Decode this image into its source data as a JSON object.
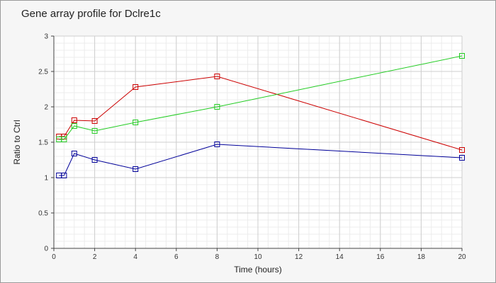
{
  "chart_data": {
    "type": "line",
    "title": "Gene array profile for Dclre1c",
    "xlabel": "Time (hours)",
    "ylabel": "Ratio to Ctrl",
    "xlim": [
      0,
      20
    ],
    "ylim": [
      0,
      3
    ],
    "x_ticks": [
      0,
      2,
      4,
      6,
      8,
      10,
      12,
      14,
      16,
      18,
      20
    ],
    "y_ticks": [
      0,
      0.5,
      1,
      1.5,
      2,
      2.5,
      3
    ],
    "y_tick_labels": [
      "0",
      "0.5",
      "1",
      "1.5",
      "2",
      "2.5",
      "3"
    ],
    "grid": true,
    "marker": "square",
    "series": [
      {
        "color": "#cc0000",
        "x": [
          0.25,
          0.5,
          1,
          2,
          4,
          8,
          20
        ],
        "y": [
          1.58,
          1.58,
          1.81,
          1.8,
          2.28,
          2.43,
          1.39
        ]
      },
      {
        "color": "#22cc22",
        "x": [
          0.25,
          0.5,
          1,
          2,
          4,
          8,
          20
        ],
        "y": [
          1.54,
          1.54,
          1.73,
          1.66,
          1.78,
          2.0,
          2.72
        ]
      },
      {
        "color": "#000099",
        "x": [
          0.25,
          0.5,
          1,
          2,
          4,
          8,
          20
        ],
        "y": [
          1.03,
          1.03,
          1.34,
          1.25,
          1.12,
          1.47,
          1.28
        ]
      }
    ]
  }
}
